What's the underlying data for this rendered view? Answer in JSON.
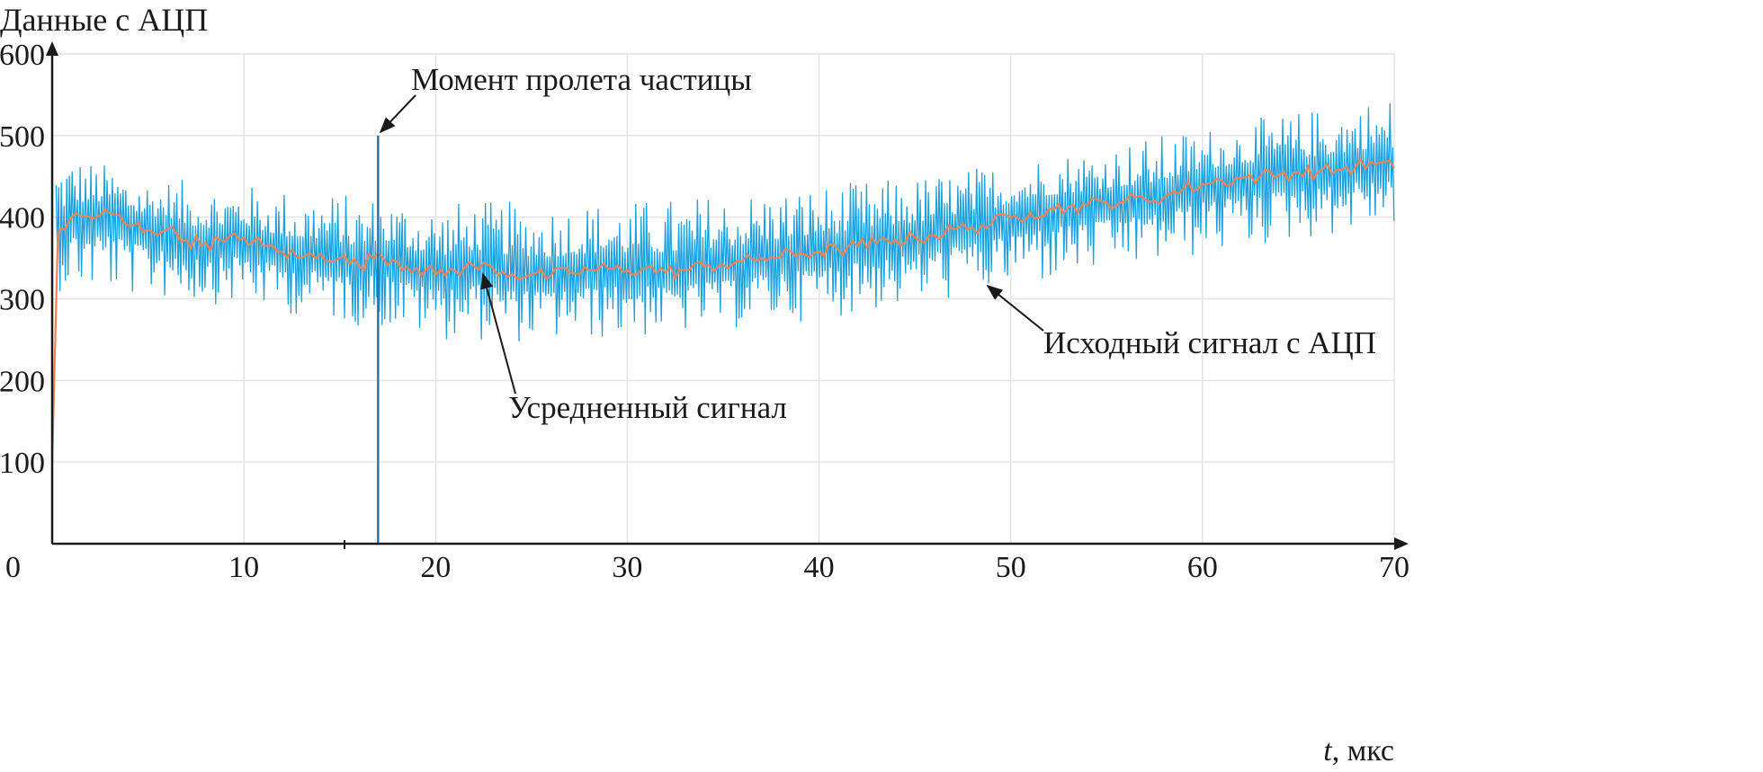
{
  "chart_data": {
    "type": "line",
    "title": "",
    "ylabel": "Данные с АЦП",
    "xlabel_var": "t",
    "xlabel_unit": ", мкс",
    "xlim": [
      0,
      70
    ],
    "ylim": [
      0,
      600
    ],
    "xticks": [
      0,
      10,
      20,
      30,
      40,
      50,
      60,
      70
    ],
    "yticks": [
      100,
      200,
      300,
      400,
      500,
      600
    ],
    "grid": true,
    "colors": {
      "raw": "#1ba1dd",
      "averaged": "#ee8454",
      "spike": "#1f78b4",
      "grid": "#e2e4e8",
      "axis": "#1a1a1a"
    },
    "series": [
      {
        "name": "Исходный сигнал с АЦП",
        "kind": "noisy-band",
        "x": [
          0,
          5,
          10,
          15,
          20,
          25,
          30,
          35,
          40,
          45,
          50,
          55,
          60,
          65,
          70
        ],
        "max": [
          485,
          450,
          440,
          430,
          420,
          420,
          420,
          430,
          440,
          450,
          470,
          490,
          510,
          530,
          550
        ],
        "min": [
          310,
          300,
          290,
          270,
          250,
          245,
          250,
          260,
          275,
          290,
          310,
          330,
          350,
          370,
          390
        ]
      },
      {
        "name": "Усредненный сигнал",
        "x": [
          0,
          0.3,
          1,
          2,
          3,
          4,
          5,
          6,
          7,
          8,
          9,
          10,
          11,
          12,
          13,
          14,
          15,
          16,
          17,
          18,
          19,
          20,
          21,
          22,
          23,
          24,
          25,
          26,
          27,
          28,
          29,
          30,
          31,
          32,
          33,
          34,
          35,
          36,
          37,
          38,
          39,
          40,
          41,
          42,
          43,
          44,
          45,
          46,
          47,
          48,
          49,
          50,
          51,
          52,
          53,
          54,
          55,
          56,
          57,
          58,
          59,
          60,
          61,
          62,
          63,
          64,
          65,
          66,
          67,
          68,
          69,
          70
        ],
        "y": [
          100,
          380,
          400,
          400,
          405,
          390,
          385,
          385,
          372,
          368,
          370,
          375,
          365,
          358,
          350,
          355,
          350,
          340,
          355,
          345,
          338,
          330,
          335,
          340,
          338,
          330,
          330,
          328,
          332,
          335,
          337,
          335,
          338,
          332,
          335,
          340,
          342,
          345,
          350,
          352,
          355,
          358,
          360,
          365,
          368,
          372,
          375,
          378,
          385,
          388,
          392,
          400,
          405,
          410,
          412,
          415,
          418,
          420,
          422,
          425,
          435,
          440,
          445,
          448,
          450,
          452,
          455,
          455,
          458,
          462,
          465,
          460
        ]
      }
    ],
    "spike": {
      "x": 17,
      "y": 500
    },
    "annotations": {
      "particle": "Момент пролета частицы",
      "averaged": "Усредненный сигнал",
      "raw": "Исходный сигнал с АЦП"
    }
  }
}
